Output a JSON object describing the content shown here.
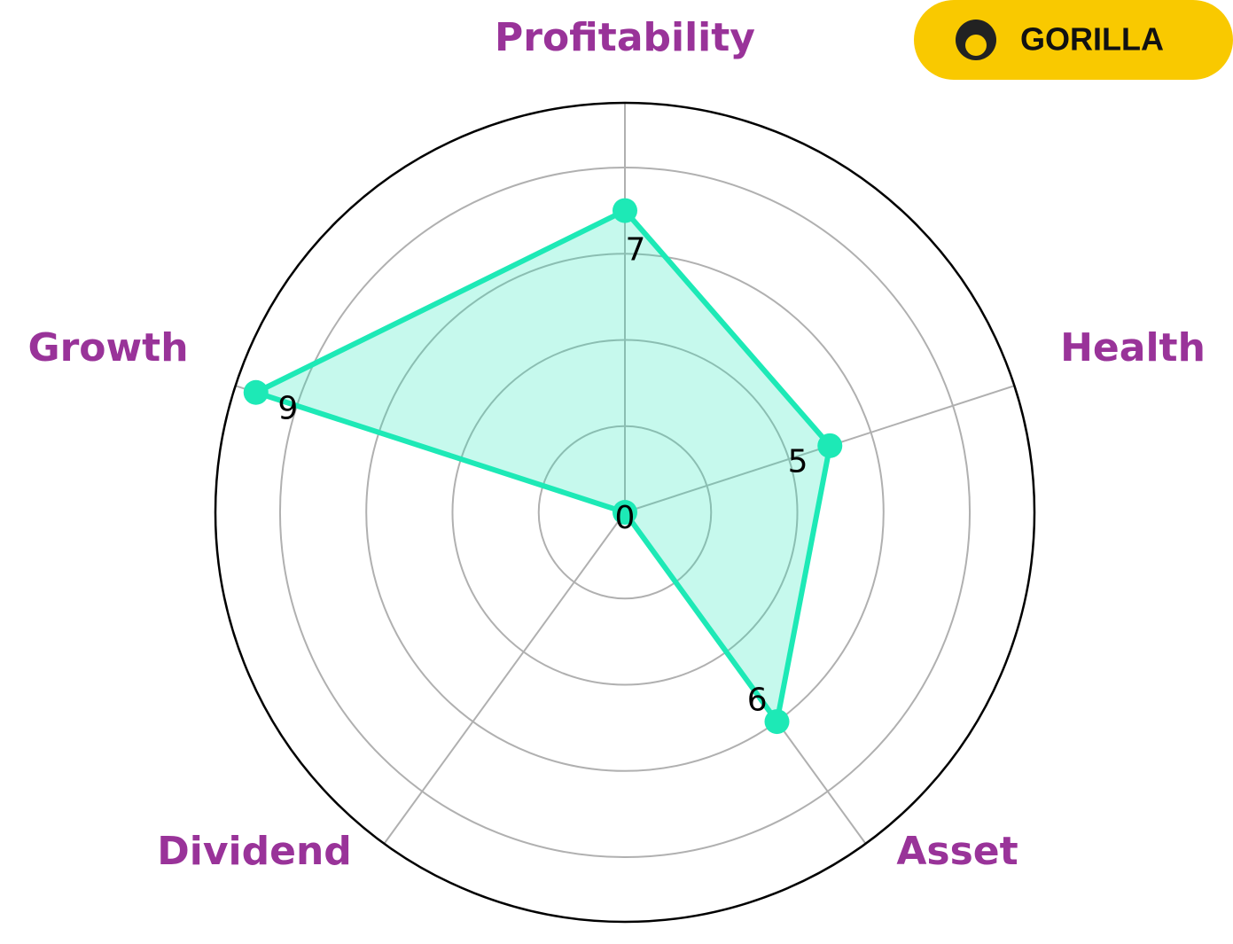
{
  "chart_data": {
    "type": "radar",
    "categories": [
      "Profitability",
      "Health",
      "Asset",
      "Dividend",
      "Growth"
    ],
    "values": [
      7,
      5,
      6,
      0,
      9
    ],
    "color": "#1de9b6",
    "label_color": "#993399",
    "ylim": [
      0,
      9.5
    ],
    "yticks": [
      2,
      4,
      6,
      8
    ],
    "grid": true
  },
  "logo": "GORILLA"
}
